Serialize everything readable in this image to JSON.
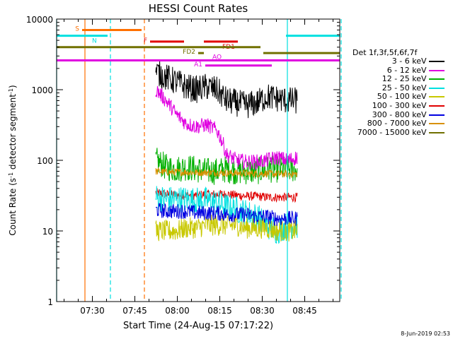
{
  "chart_data": {
    "type": "line",
    "title": "HESSI Count Rates",
    "xlabel": "Start Time (24-Aug-15 07:17:22)",
    "ylabel_parts": [
      "Count Rate (s",
      "-1",
      " detector segment",
      "-1",
      ")"
    ],
    "yscale": "log",
    "ylim": [
      1,
      10000
    ],
    "xlim_minutes": [
      0,
      100
    ],
    "x_ticks": [
      "07:30",
      "07:45",
      "08:00",
      "08:15",
      "08:30",
      "08:45"
    ],
    "x_tick_minutes": [
      12.63,
      27.63,
      42.63,
      57.63,
      72.63,
      87.63
    ],
    "y_ticks": [
      "1",
      "10",
      "100",
      "1000",
      "10000"
    ],
    "y_tick_values": [
      1,
      10,
      100,
      1000,
      10000
    ],
    "legend_title": "Det 1f,3f,5f,6f,7f",
    "series": [
      {
        "name": "3 - 6 keV",
        "color": "#000000",
        "profile": [
          1800,
          1500,
          1300,
          1100,
          1000,
          1100,
          1000,
          700,
          650,
          600,
          650,
          800,
          750,
          700,
          700
        ],
        "noise": 0.45
      },
      {
        "name": "6 - 12 keV",
        "color": "#e000e0",
        "profile": [
          1000,
          700,
          450,
          330,
          300,
          320,
          270,
          120,
          100,
          95,
          95,
          100,
          110,
          100,
          110
        ],
        "noise": 0.25
      },
      {
        "name": "12 - 25 keV",
        "color": "#00b000",
        "profile": [
          100,
          80,
          75,
          80,
          75,
          70,
          70,
          75,
          70,
          70,
          70,
          75,
          75,
          75,
          75
        ],
        "noise": 0.45
      },
      {
        "name": "25 - 50 keV",
        "color": "#00e0e0",
        "profile": [
          30,
          28,
          28,
          28,
          27,
          27,
          25,
          22,
          20,
          18,
          16,
          12,
          10,
          12,
          12
        ],
        "noise": 0.45
      },
      {
        "name": "50 - 100 keV",
        "color": "#c8c800",
        "profile": [
          10,
          10,
          10,
          11,
          11,
          12,
          12,
          12,
          12,
          11,
          11,
          11,
          10,
          10,
          10
        ],
        "noise": 0.35
      },
      {
        "name": "100 - 300 keV",
        "color": "#e00000",
        "profile": [
          35,
          33,
          32,
          32,
          32,
          33,
          33,
          33,
          32,
          31,
          31,
          30,
          30,
          30,
          30
        ],
        "noise": 0.15
      },
      {
        "name": "300 - 800 keV",
        "color": "#0000e0",
        "profile": [
          20,
          19,
          19,
          19,
          18,
          18,
          18,
          17,
          17,
          17,
          16,
          16,
          15,
          15,
          15
        ],
        "noise": 0.25
      },
      {
        "name": "800 - 7000 keV",
        "color": "#d89000",
        "profile": [
          70,
          68,
          68,
          68,
          67,
          67,
          67,
          66,
          66,
          65,
          65,
          65,
          64,
          64,
          64
        ],
        "noise": 0.12
      },
      {
        "name": "7000 - 15000 keV",
        "color": "#707000",
        "profile": [],
        "noise": 0
      }
    ],
    "data_range_minutes": [
      35,
      85
    ],
    "flag_bars": [
      {
        "label": "S",
        "color": "#ff7000",
        "x0": 9,
        "x1": 30,
        "y": 7000,
        "label_pos": "left"
      },
      {
        "label": "N",
        "color": "#00e0e0",
        "x0": 0,
        "x1": 18,
        "y": 5800,
        "label_pos": "right-below"
      },
      {
        "label": "F",
        "color": "#e00000",
        "x0": 33,
        "x1": 45,
        "y": 4800,
        "label_pos": "left"
      },
      {
        "label": "FD1",
        "color": "#e00000",
        "x0": 52,
        "x1": 64,
        "y": 4800,
        "label_pos": "right-below"
      },
      {
        "label": "",
        "color": "#707000",
        "x0": 0,
        "x1": 72,
        "y": 4000,
        "label_pos": "none"
      },
      {
        "label": "FD2",
        "color": "#707000",
        "x0": 50,
        "x1": 52,
        "y": 3300,
        "label_pos": "left"
      },
      {
        "label": "",
        "color": "#707000",
        "x0": 73,
        "x1": 100,
        "y": 3300,
        "label_pos": "none"
      },
      {
        "label": "",
        "color": "#00e0e0",
        "x0": 81,
        "x1": 100,
        "y": 5800,
        "label_pos": "none"
      },
      {
        "label": "AO",
        "color": "#e000e0",
        "x0": 0,
        "x1": 100,
        "y": 2600,
        "label_pos": "right-above-at",
        "label_x": 55
      },
      {
        "label": "A1",
        "color": "#e000e0",
        "x0": 52.5,
        "x1": 76,
        "y": 2200,
        "label_pos": "left"
      }
    ],
    "vlines": [
      {
        "x": 10,
        "color": "#ff7000",
        "dash": false
      },
      {
        "x": 19,
        "color": "#00e0e0",
        "dash": true
      },
      {
        "x": 31,
        "color": "#ff7000",
        "dash": true
      },
      {
        "x": 81.5,
        "color": "#00e0e0",
        "dash": false
      },
      {
        "x": 100.5,
        "color": "#00e0e0",
        "dash": true
      },
      {
        "x": 0,
        "color": "#00e0e0",
        "dash": false
      }
    ],
    "grid": false,
    "legend_position": "right"
  },
  "footer": {
    "timestamp": "8-Jun-2019 02:53"
  }
}
